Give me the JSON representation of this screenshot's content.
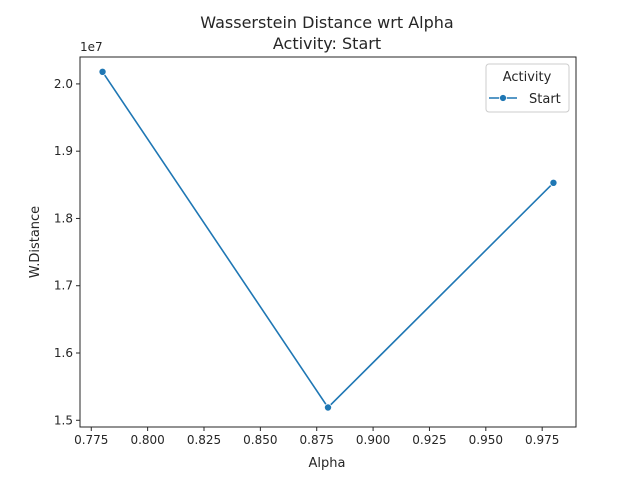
{
  "chart_data": {
    "type": "line",
    "title_line1": "Wasserstein Distance wrt Alpha",
    "title_line2": "Activity: Start",
    "xlabel": "Alpha",
    "ylabel": "W.Distance",
    "y_offset_label": "1e7",
    "xlim": [
      0.77,
      0.99
    ],
    "ylim": [
      1.49,
      2.04
    ],
    "x_ticks": [
      0.775,
      0.8,
      0.825,
      0.85,
      0.875,
      0.9,
      0.925,
      0.95,
      0.975
    ],
    "x_tick_labels": [
      "0.775",
      "0.800",
      "0.825",
      "0.850",
      "0.875",
      "0.900",
      "0.925",
      "0.950",
      "0.975"
    ],
    "y_ticks": [
      1.5,
      1.6,
      1.7,
      1.8,
      1.9,
      2.0
    ],
    "y_tick_labels": [
      "1.5",
      "1.6",
      "1.7",
      "1.8",
      "1.9",
      "2.0"
    ],
    "grid": false,
    "legend": {
      "title": "Activity",
      "placement": "top-right",
      "entries": [
        "Start"
      ]
    },
    "series": [
      {
        "name": "Start",
        "color": "#1f77b4",
        "marker": "circle",
        "x": [
          0.78,
          0.88,
          0.98
        ],
        "y": [
          2.018,
          1.519,
          1.853
        ]
      }
    ]
  }
}
